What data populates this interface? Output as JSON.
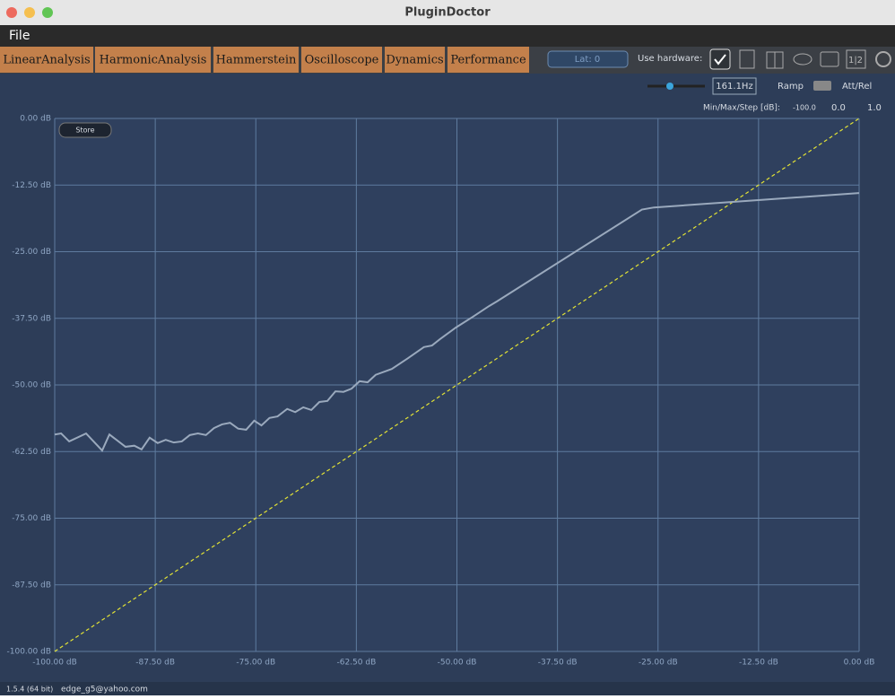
{
  "window_title": "PluginDoctor",
  "menu": [
    "File"
  ],
  "tabs": [
    "LinearAnalysis",
    "HarmonicAnalysis",
    "Hammerstein",
    "Oscilloscope",
    "Dynamics",
    "Performance"
  ],
  "toolbar": {
    "latency": "Lat: 0",
    "use_hardware": "Use hardware:",
    "compare": "1|2"
  },
  "controls": {
    "frequency": "161.1Hz",
    "ramp": "Ramp",
    "att_rel": "Att/Rel",
    "min_max_step_label": "Min/Max/Step [dB]:",
    "min": "-100.0",
    "max": "0.0",
    "step": "1.0",
    "store": "Store"
  },
  "footer": {
    "version": "1.5.4 (64 bit)",
    "user": "edge_g5@yahoo.com"
  },
  "chart_data": {
    "type": "line",
    "x": [
      -100,
      -99.2,
      -98.2,
      -96.1,
      -94.1,
      -93.2,
      -91.2,
      -90.1,
      -89.2,
      -88.2,
      -87.2,
      -86.2,
      -85.2,
      -84.2,
      -83.2,
      -82.2,
      -81.2,
      -80.2,
      -79.2,
      -78.2,
      -77.2,
      -76.2,
      -75.2,
      -74.3,
      -73.3,
      -72.3,
      -71.1,
      -70.1,
      -69.1,
      -68.1,
      -67.1,
      -66.1,
      -65.1,
      -64.1,
      -63.1,
      -62.1,
      -61.1,
      -60.1,
      -58.1,
      -56.1,
      -54.1,
      -53.1,
      -52.1,
      -50.1,
      -48.0,
      -46.0,
      -45.0,
      -27.0,
      -25.5,
      0
    ],
    "series": [
      {
        "color": "#9aa9bd",
        "values": [
          -59.3,
          -59.1,
          -60.6,
          -59.1,
          -62.3,
          -59.3,
          -61.6,
          -61.4,
          -62.1,
          -59.9,
          -60.9,
          -60.3,
          -60.8,
          -60.6,
          -59.4,
          -59.1,
          -59.4,
          -58.1,
          -57.4,
          -57.1,
          -58.2,
          -58.4,
          -56.7,
          -57.6,
          -56.2,
          -55.9,
          -54.5,
          -55.1,
          -54.2,
          -54.7,
          -53.2,
          -53.0,
          -51.2,
          -51.3,
          -50.7,
          -49.3,
          -49.5,
          -48.1,
          -47.0,
          -45.0,
          -42.9,
          -42.6,
          -41.4,
          -39.2,
          -37.2,
          -35.2,
          -34.3,
          -17.1,
          -16.7,
          -14.0
        ]
      }
    ],
    "reference_line": {
      "color": "#e3e335",
      "dashed": true,
      "x": [
        -100,
        0
      ],
      "values": [
        -100,
        0
      ]
    },
    "xlim": [
      -100,
      0
    ],
    "ylim": [
      -100,
      0
    ],
    "xticks": [
      {
        "value": -100,
        "label": "-100.00 dB"
      },
      {
        "value": -87.5,
        "label": "-87.50 dB"
      },
      {
        "value": -75,
        "label": "-75.00 dB"
      },
      {
        "value": -62.5,
        "label": "-62.50 dB"
      },
      {
        "value": -50,
        "label": "-50.00 dB"
      },
      {
        "value": -37.5,
        "label": "-37.50 dB"
      },
      {
        "value": -25,
        "label": "-25.00 dB"
      },
      {
        "value": -12.5,
        "label": "-12.50 dB"
      },
      {
        "value": 0,
        "label": "0.00 dB"
      }
    ],
    "yticks": [
      {
        "value": 0,
        "label": "0.00 dB"
      },
      {
        "value": -12.5,
        "label": "-12.50 dB"
      },
      {
        "value": -25,
        "label": "-25.00 dB"
      },
      {
        "value": -37.5,
        "label": "-37.50 dB"
      },
      {
        "value": -50,
        "label": "-50.00 dB"
      },
      {
        "value": -62.5,
        "label": "-62.50 dB"
      },
      {
        "value": -75,
        "label": "-75.00 dB"
      },
      {
        "value": -87.5,
        "label": "-87.50 dB"
      },
      {
        "value": -100,
        "label": "-100.00 dB"
      }
    ],
    "grid": true
  }
}
